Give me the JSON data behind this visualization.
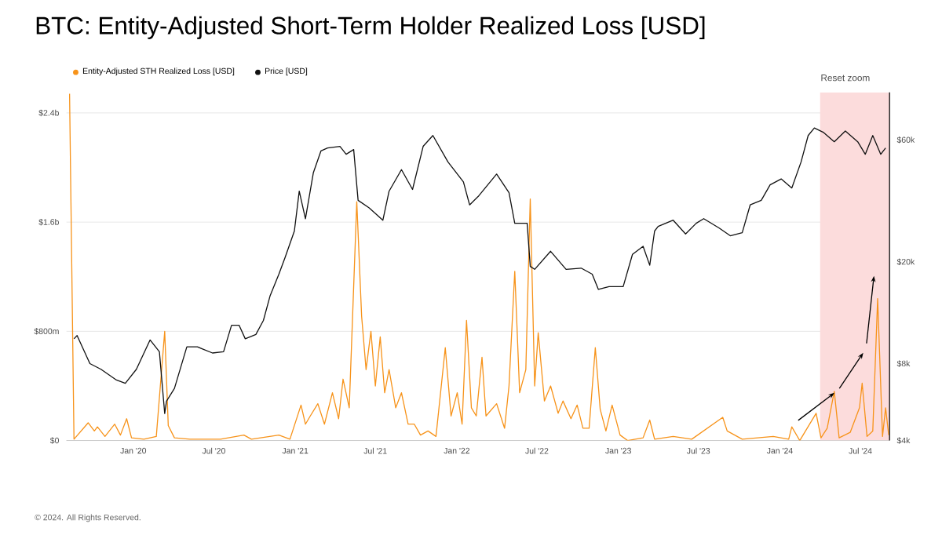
{
  "chart_data": {
    "type": "line",
    "title": "BTC: Entity-Adjusted Short-Term Holder Realized Loss [USD]",
    "annotations": [
      "Reset zoom",
      "© 2024. All Rights Reserved."
    ],
    "legend": "top left",
    "grid": "y",
    "marker": "none",
    "log": "y2",
    "xlim": [
      "2019-08-03",
      "2024-09-05"
    ],
    "xticks": [
      {
        "value": "2020-01-01",
        "label": "Jan '20"
      },
      {
        "value": "2020-07-01",
        "label": "Jul '20"
      },
      {
        "value": "2021-01-01",
        "label": "Jan '21"
      },
      {
        "value": "2021-07-01",
        "label": "Jul '21"
      },
      {
        "value": "2022-01-01",
        "label": "Jan '22"
      },
      {
        "value": "2022-07-01",
        "label": "Jul '22"
      },
      {
        "value": "2023-01-01",
        "label": "Jan '23"
      },
      {
        "value": "2023-07-01",
        "label": "Jul '23"
      },
      {
        "value": "2024-01-01",
        "label": "Jan '24"
      },
      {
        "value": "2024-07-01",
        "label": "Jul '24"
      }
    ],
    "ylim": [
      0,
      2550000000.0
    ],
    "yticks": [
      {
        "value": 0,
        "label": "$0"
      },
      {
        "value": 800000000.0,
        "label": "$800m"
      },
      {
        "value": 1600000000.0,
        "label": "$1.6b"
      },
      {
        "value": 2400000000.0,
        "label": "$2.4b"
      }
    ],
    "y2lim": [
      4000,
      92000
    ],
    "y2ticks": [
      {
        "value": 4000,
        "label": "$4k"
      },
      {
        "value": 8000,
        "label": "$8k"
      },
      {
        "value": 20000,
        "label": "$20k"
      },
      {
        "value": 60000,
        "label": "$60k"
      }
    ],
    "bands": [
      {
        "axis": "x",
        "from": "2024-04-01",
        "to": "2024-09-05",
        "color": "#fcdcdc"
      }
    ],
    "series": [
      {
        "name": "Entity-Adjusted STH Realized Loss [USD]",
        "color": "#f7931a",
        "x": [
          "2019-08-10",
          "2019-08-20",
          "2019-09-21",
          "2019-10-05",
          "2019-10-12",
          "2019-10-29",
          "2019-11-20",
          "2019-12-03",
          "2019-12-17",
          "2019-12-28",
          "2020-01-25",
          "2020-02-22",
          "2020-03-12",
          "2020-03-20",
          "2020-04-03",
          "2020-05-08",
          "2020-07-16",
          "2020-09-07",
          "2020-09-24",
          "2020-11-25",
          "2020-12-20",
          "2021-01-14",
          "2021-01-24",
          "2021-02-04",
          "2021-02-21",
          "2021-03-08",
          "2021-03-26",
          "2021-04-09",
          "2021-04-19",
          "2021-05-03",
          "2021-05-20",
          "2021-05-31",
          "2021-06-10",
          "2021-06-21",
          "2021-07-01",
          "2021-07-12",
          "2021-07-22",
          "2021-08-01",
          "2021-08-16",
          "2021-08-29",
          "2021-09-13",
          "2021-09-27",
          "2021-10-11",
          "2021-10-28",
          "2021-11-15",
          "2021-12-06",
          "2021-12-19",
          "2022-01-02",
          "2022-01-13",
          "2022-01-23",
          "2022-02-03",
          "2022-02-14",
          "2022-02-27",
          "2022-03-08",
          "2022-04-01",
          "2022-04-19",
          "2022-04-29",
          "2022-05-12",
          "2022-05-23",
          "2022-06-06",
          "2022-06-16",
          "2022-06-26",
          "2022-07-04",
          "2022-07-18",
          "2022-08-01",
          "2022-08-18",
          "2022-08-29",
          "2022-09-16",
          "2022-09-30",
          "2022-10-13",
          "2022-10-27",
          "2022-11-10",
          "2022-11-21",
          "2022-12-04",
          "2022-12-18",
          "2023-01-05",
          "2023-01-22",
          "2023-02-26",
          "2023-03-13",
          "2023-03-24",
          "2023-05-05",
          "2023-06-16",
          "2023-08-25",
          "2023-09-04",
          "2023-10-08",
          "2023-12-17",
          "2024-01-21",
          "2024-01-28",
          "2024-02-15",
          "2024-03-23",
          "2024-04-03",
          "2024-04-17",
          "2024-05-03",
          "2024-05-14",
          "2024-06-08",
          "2024-06-29",
          "2024-07-05",
          "2024-07-16",
          "2024-07-29",
          "2024-08-09",
          "2024-08-20",
          "2024-08-27",
          "2024-09-03"
        ],
        "values": [
          2540000000.0,
          10000000.0,
          130000000.0,
          70000000.0,
          100000000.0,
          30000000.0,
          120000000.0,
          40000000.0,
          160000000.0,
          20000000.0,
          10000000.0,
          30000000.0,
          800000000.0,
          110000000.0,
          20000000.0,
          10000000.0,
          10000000.0,
          40000000.0,
          10000000.0,
          40000000.0,
          10000000.0,
          260000000.0,
          120000000.0,
          180000000.0,
          270000000.0,
          120000000.0,
          350000000.0,
          160000000.0,
          450000000.0,
          240000000.0,
          1750000000.0,
          910000000.0,
          520000000.0,
          800000000.0,
          400000000.0,
          760000000.0,
          350000000.0,
          520000000.0,
          240000000.0,
          350000000.0,
          120000000.0,
          120000000.0,
          40000000.0,
          70000000.0,
          30000000.0,
          680000000.0,
          180000000.0,
          350000000.0,
          120000000.0,
          880000000.0,
          240000000.0,
          180000000.0,
          610000000.0,
          180000000.0,
          270000000.0,
          90000000.0,
          400000000.0,
          1240000000.0,
          350000000.0,
          520000000.0,
          1770000000.0,
          400000000.0,
          790000000.0,
          290000000.0,
          400000000.0,
          200000000.0,
          290000000.0,
          160000000.0,
          260000000.0,
          90000000.0,
          90000000.0,
          680000000.0,
          230000000.0,
          70000000.0,
          260000000.0,
          40000000.0,
          0,
          20000000.0,
          150000000.0,
          10000000.0,
          30000000.0,
          10000000.0,
          170000000.0,
          70000000.0,
          10000000.0,
          30000000.0,
          10000000.0,
          100000000.0,
          0,
          200000000.0,
          20000000.0,
          90000000.0,
          360000000.0,
          20000000.0,
          60000000.0,
          240000000.0,
          420000000.0,
          30000000.0,
          70000000.0,
          1040000000.0,
          30000000.0,
          240000000.0,
          40000000.0
        ]
      },
      {
        "name": "Price [USD]",
        "color": "#111111",
        "axis": "y2",
        "x": [
          "2019-08-20",
          "2019-08-27",
          "2019-09-25",
          "2019-10-20",
          "2019-11-24",
          "2019-12-14",
          "2020-01-08",
          "2020-02-08",
          "2020-02-29",
          "2020-03-12",
          "2020-03-16",
          "2020-04-03",
          "2020-05-01",
          "2020-05-25",
          "2020-06-28",
          "2020-07-23",
          "2020-08-10",
          "2020-08-27",
          "2020-09-10",
          "2020-10-04",
          "2020-10-21",
          "2020-11-05",
          "2020-11-25",
          "2020-12-09",
          "2020-12-30",
          "2021-01-10",
          "2021-01-24",
          "2021-02-11",
          "2021-02-28",
          "2021-03-15",
          "2021-04-12",
          "2021-04-26",
          "2021-05-13",
          "2021-05-23",
          "2021-06-17",
          "2021-07-18",
          "2021-08-01",
          "2021-08-29",
          "2021-09-23",
          "2021-10-17",
          "2021-11-08",
          "2021-12-12",
          "2022-01-16",
          "2022-01-30",
          "2022-02-20",
          "2022-04-01",
          "2022-04-29",
          "2022-05-12",
          "2022-06-09",
          "2022-06-16",
          "2022-06-26",
          "2022-08-01",
          "2022-09-05",
          "2022-10-09",
          "2022-11-03",
          "2022-11-17",
          "2022-12-11",
          "2023-01-12",
          "2023-02-02",
          "2023-02-26",
          "2023-03-13",
          "2023-03-24",
          "2023-04-01",
          "2023-05-05",
          "2023-06-02",
          "2023-06-26",
          "2023-07-13",
          "2023-08-17",
          "2023-09-11",
          "2023-10-08",
          "2023-10-26",
          "2023-11-20",
          "2023-12-10",
          "2024-01-04",
          "2024-01-28",
          "2024-02-18",
          "2024-03-05",
          "2024-03-19",
          "2024-04-09",
          "2024-05-03",
          "2024-05-28",
          "2024-06-25",
          "2024-07-12",
          "2024-07-29",
          "2024-08-16",
          "2024-08-27"
        ],
        "values": [
          10000,
          10300,
          8000,
          7600,
          6900,
          6700,
          7600,
          9900,
          8900,
          5100,
          5700,
          6400,
          9300,
          9300,
          8800,
          8900,
          11300,
          11300,
          10000,
          10400,
          11800,
          14700,
          17900,
          20800,
          26400,
          37800,
          29500,
          44700,
          54300,
          55800,
          56600,
          52700,
          55000,
          34800,
          32500,
          29100,
          37800,
          45900,
          38400,
          56600,
          62400,
          49200,
          41100,
          33400,
          36300,
          44100,
          37300,
          28300,
          28300,
          19200,
          18700,
          22000,
          18700,
          18900,
          17900,
          15600,
          16000,
          16000,
          21400,
          23000,
          19400,
          26400,
          27500,
          29100,
          25700,
          28300,
          29500,
          27100,
          25300,
          26000,
          33400,
          34800,
          40000,
          42200,
          38900,
          49200,
          62400,
          66800,
          64100,
          59000,
          65000,
          59000,
          52700,
          62400,
          52700,
          55800
        ]
      }
    ]
  }
}
